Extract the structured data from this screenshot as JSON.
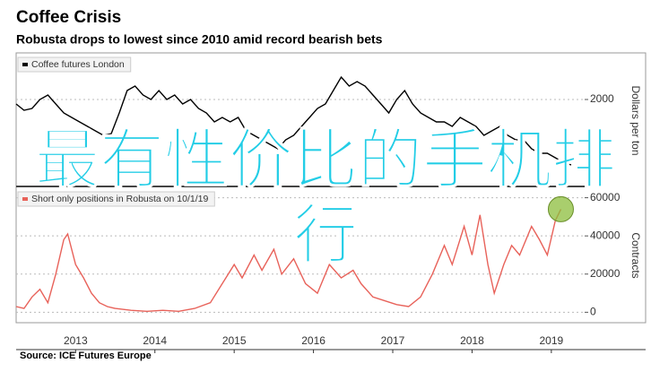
{
  "header": {
    "title": "Coffee Crisis",
    "subtitle": "Robusta drops to lowest since 2010 amid record bearish bets"
  },
  "source": "Source: ICE Futures Europe",
  "watermark": "最有性价比的手机排行",
  "chart_data": [
    {
      "type": "line",
      "y_label": "Dollars per ton",
      "xlim": [
        2012.75,
        2019.92
      ],
      "x": [
        2012.75,
        2012.85,
        2012.95,
        2013.05,
        2013.15,
        2013.25,
        2013.35,
        2013.45,
        2013.55,
        2013.65,
        2013.75,
        2013.85,
        2013.95,
        2014.05,
        2014.15,
        2014.25,
        2014.35,
        2014.45,
        2014.55,
        2014.65,
        2014.75,
        2014.85,
        2014.95,
        2015.05,
        2015.15,
        2015.25,
        2015.35,
        2015.45,
        2015.55,
        2015.65,
        2015.75,
        2015.85,
        2015.95,
        2016.05,
        2016.15,
        2016.25,
        2016.35,
        2016.45,
        2016.55,
        2016.65,
        2016.75,
        2016.85,
        2016.95,
        2017.05,
        2017.15,
        2017.25,
        2017.35,
        2017.45,
        2017.55,
        2017.65,
        2017.75,
        2017.85,
        2017.95,
        2018.05,
        2018.15,
        2018.25,
        2018.35,
        2018.45,
        2018.55,
        2018.65,
        2018.75,
        2018.85,
        2018.95,
        2019.05,
        2019.15,
        2019.25,
        2019.35,
        2019.45,
        2019.55,
        2019.65,
        2019.75
      ],
      "series": [
        {
          "name": "Coffee futures London",
          "color": "#000000",
          "values": [
            1950,
            1880,
            1900,
            2000,
            2050,
            1950,
            1850,
            1800,
            1750,
            1700,
            1650,
            1600,
            1620,
            1850,
            2100,
            2150,
            2050,
            2000,
            2100,
            2000,
            2050,
            1950,
            2000,
            1900,
            1850,
            1750,
            1800,
            1750,
            1800,
            1650,
            1600,
            1550,
            1500,
            1450,
            1550,
            1600,
            1700,
            1800,
            1900,
            1950,
            2100,
            2250,
            2150,
            2200,
            2150,
            2050,
            1950,
            1850,
            2000,
            2100,
            1950,
            1850,
            1800,
            1750,
            1750,
            1700,
            1800,
            1750,
            1700,
            1600,
            1650,
            1700,
            1600,
            1550,
            1550,
            1450,
            1400,
            1400,
            1350,
            1300,
            1270
          ]
        }
      ],
      "ylim": [
        1030,
        2500
      ],
      "yticks": [
        2000
      ],
      "grid": true
    },
    {
      "type": "line",
      "y_label": "Contracts",
      "xlim": [
        2012.75,
        2019.92
      ],
      "x": [
        2012.75,
        2012.85,
        2012.95,
        2013.05,
        2013.15,
        2013.25,
        2013.35,
        2013.4,
        2013.5,
        2013.6,
        2013.7,
        2013.8,
        2013.9,
        2014.0,
        2014.2,
        2014.4,
        2014.6,
        2014.8,
        2015.0,
        2015.2,
        2015.35,
        2015.5,
        2015.6,
        2015.75,
        2015.85,
        2016.0,
        2016.1,
        2016.25,
        2016.4,
        2016.55,
        2016.7,
        2016.85,
        2017.0,
        2017.1,
        2017.25,
        2017.4,
        2017.55,
        2017.7,
        2017.85,
        2018.0,
        2018.15,
        2018.25,
        2018.4,
        2018.5,
        2018.6,
        2018.7,
        2018.78,
        2018.9,
        2019.0,
        2019.1,
        2019.25,
        2019.35,
        2019.45,
        2019.55,
        2019.62
      ],
      "series": [
        {
          "name": "Short only positions in Robusta on 10/1/19",
          "color": "#e8625a",
          "values": [
            3000,
            2000,
            8000,
            12000,
            5000,
            20000,
            38000,
            41000,
            25000,
            18000,
            10000,
            5000,
            3000,
            2000,
            1000,
            500,
            1000,
            500,
            2000,
            5000,
            15000,
            25000,
            18000,
            30000,
            22000,
            33000,
            20000,
            28000,
            15000,
            10000,
            25000,
            18000,
            22000,
            15000,
            8000,
            6000,
            4000,
            3000,
            8000,
            20000,
            35000,
            25000,
            45000,
            30000,
            51000,
            25000,
            10000,
            25000,
            35000,
            30000,
            45000,
            38000,
            30000,
            48000,
            54000
          ]
        }
      ],
      "ylim": [
        -5000,
        64500
      ],
      "yticks": [
        0,
        20000,
        40000,
        60000
      ],
      "grid": true,
      "xticks": [
        {
          "value": 2013.5,
          "label": "2013"
        },
        {
          "value": 2014.5,
          "label": "2014"
        },
        {
          "value": 2015.5,
          "label": "2015"
        },
        {
          "value": 2016.5,
          "label": "2016"
        },
        {
          "value": 2017.5,
          "label": "2017"
        },
        {
          "value": 2018.5,
          "label": "2018"
        },
        {
          "value": 2019.5,
          "label": "2019"
        }
      ]
    }
  ]
}
